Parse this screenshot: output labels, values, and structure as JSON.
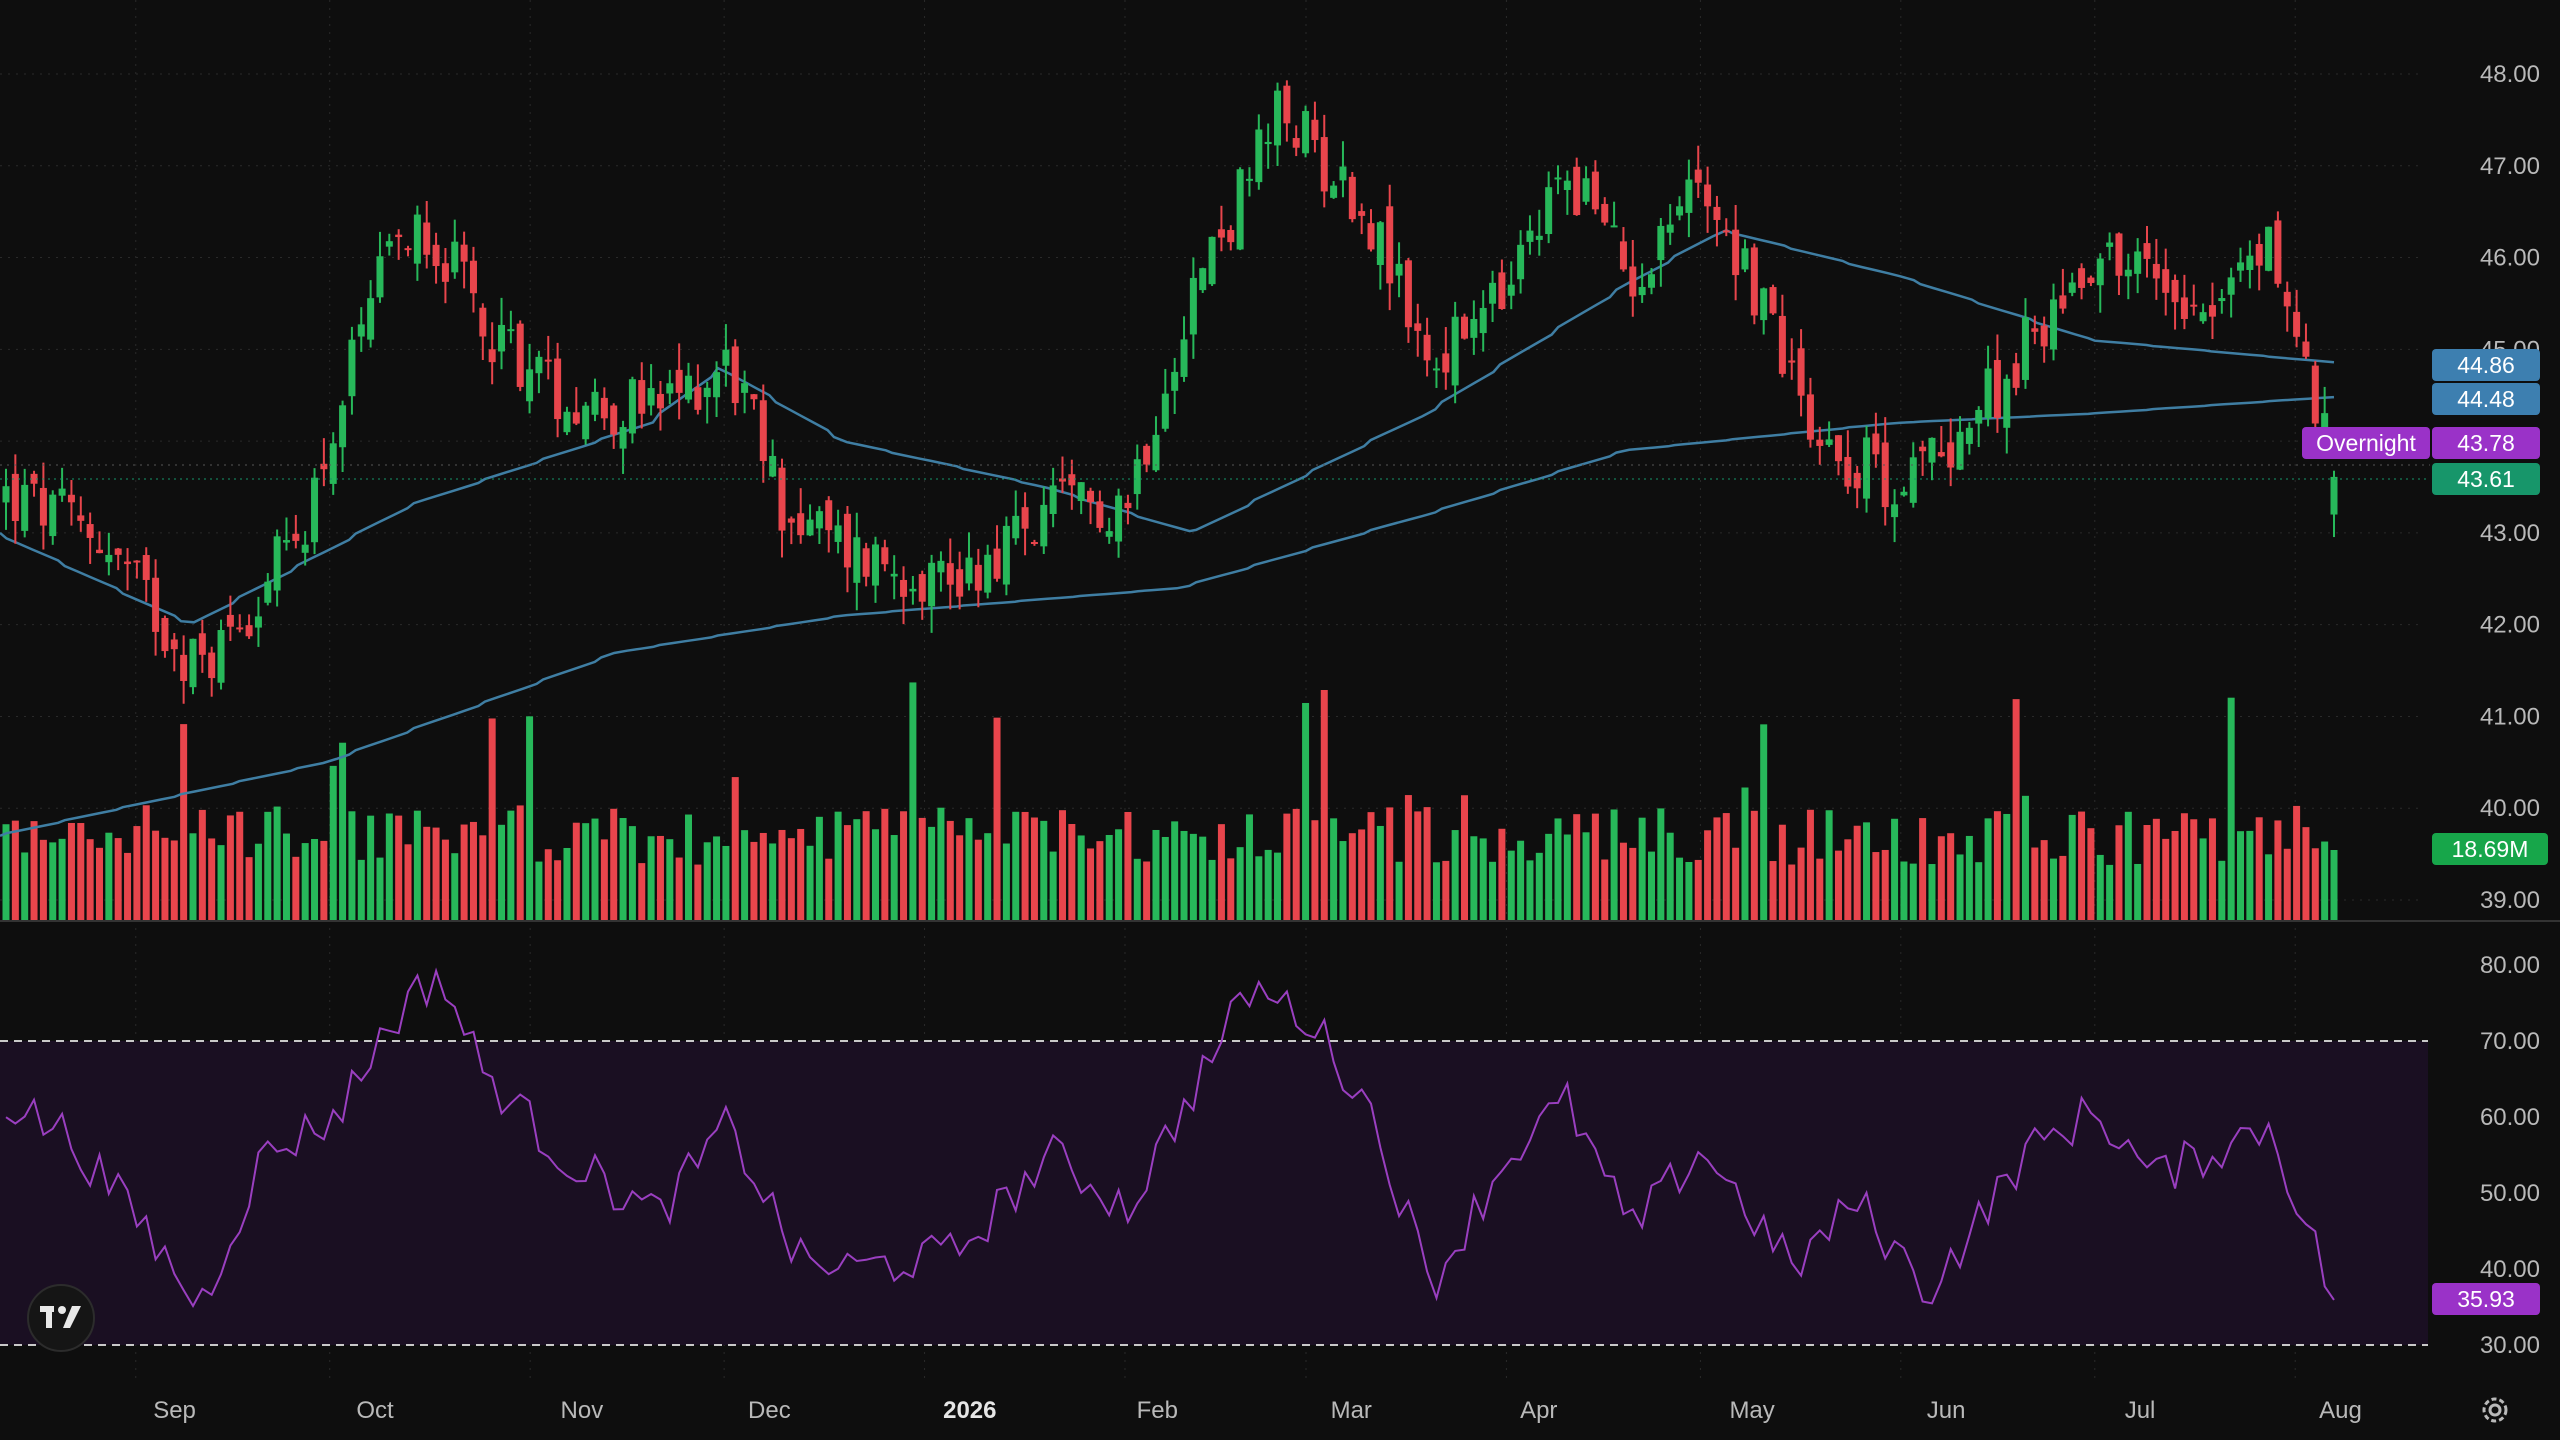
{
  "colors": {
    "background": "#0e0e0e",
    "up": "#27b85a",
    "down": "#e8454c",
    "ma_fast": "#3f7ea3",
    "ma_slow": "#3f7ea3",
    "rsi": "#9a3fc0",
    "rsi_band": "#1a0f22",
    "axis_text": "#b9b9b9",
    "grid": "#2a2a2a"
  },
  "icons": {
    "logo": "tradingview-logo-icon",
    "settings": "gear-icon"
  },
  "axis": {
    "price_ticks": [
      "48.00",
      "47.00",
      "46.00",
      "45.00",
      "44.00",
      "43.00",
      "42.00",
      "41.00",
      "40.00",
      "39.00"
    ],
    "rsi_ticks": [
      "80.00",
      "70.00",
      "60.00",
      "50.00",
      "40.00",
      "30.00"
    ],
    "month_labels": [
      "Sep",
      "Oct",
      "Nov",
      "Dec",
      "2026",
      "Feb",
      "Mar",
      "Apr",
      "May",
      "Jun",
      "Jul",
      "Aug"
    ]
  },
  "chart_data": [
    {
      "type": "candlestick",
      "title": "",
      "ylim": [
        39.0,
        48.0
      ],
      "x_range": [
        "2025-08-11",
        "2026-08-07"
      ],
      "candle_count": 250,
      "close_path": [
        {
          "x": "2025-08-11",
          "y": 43.4
        },
        {
          "x": "2025-08-25",
          "y": 43.0
        },
        {
          "x": "2025-09-10",
          "y": 41.5
        },
        {
          "x": "2025-09-25",
          "y": 42.9
        },
        {
          "x": "2025-10-08",
          "y": 45.7
        },
        {
          "x": "2025-10-14",
          "y": 46.5
        },
        {
          "x": "2025-10-24",
          "y": 45.3
        },
        {
          "x": "2025-11-05",
          "y": 44.5
        },
        {
          "x": "2025-11-20",
          "y": 44.3
        },
        {
          "x": "2025-12-01",
          "y": 44.9
        },
        {
          "x": "2025-12-10",
          "y": 43.2
        },
        {
          "x": "2025-12-20",
          "y": 42.8
        },
        {
          "x": "2026-01-05",
          "y": 42.5
        },
        {
          "x": "2026-01-20",
          "y": 43.2
        },
        {
          "x": "2026-02-01",
          "y": 43.4
        },
        {
          "x": "2026-02-10",
          "y": 45.5
        },
        {
          "x": "2026-02-25",
          "y": 47.6
        },
        {
          "x": "2026-03-10",
          "y": 46.5
        },
        {
          "x": "2026-03-20",
          "y": 44.8
        },
        {
          "x": "2026-04-01",
          "y": 45.6
        },
        {
          "x": "2026-04-10",
          "y": 47.0
        },
        {
          "x": "2026-04-20",
          "y": 45.8
        },
        {
          "x": "2026-05-01",
          "y": 46.9
        },
        {
          "x": "2026-05-20",
          "y": 44.0
        },
        {
          "x": "2026-06-01",
          "y": 43.5
        },
        {
          "x": "2026-06-15",
          "y": 44.5
        },
        {
          "x": "2026-07-01",
          "y": 46.1
        },
        {
          "x": "2026-07-20",
          "y": 45.5
        },
        {
          "x": "2026-07-28",
          "y": 46.2
        },
        {
          "x": "2026-08-07",
          "y": 43.61
        }
      ],
      "moving_averages": [
        {
          "values_at": [
            {
              "x": "2025-08-11",
              "y": 43.0
            },
            {
              "x": "2025-09-10",
              "y": 42.0
            },
            {
              "x": "2025-10-14",
              "y": 43.3
            },
            {
              "x": "2025-11-20",
              "y": 44.2
            },
            {
              "x": "2025-12-01",
              "y": 44.8
            },
            {
              "x": "2025-12-20",
              "y": 44.0
            },
            {
              "x": "2026-01-20",
              "y": 43.5
            },
            {
              "x": "2026-02-12",
              "y": 43.0
            },
            {
              "x": "2026-03-20",
              "y": 44.3
            },
            {
              "x": "2026-04-20",
              "y": 45.7
            },
            {
              "x": "2026-05-05",
              "y": 46.3
            },
            {
              "x": "2026-06-01",
              "y": 45.8
            },
            {
              "x": "2026-07-01",
              "y": 45.1
            },
            {
              "x": "2026-08-07",
              "y": 44.86
            }
          ]
        },
        {
          "values_at": [
            {
              "x": "2025-08-11",
              "y": 39.7
            },
            {
              "x": "2025-10-01",
              "y": 40.5
            },
            {
              "x": "2025-11-15",
              "y": 41.7
            },
            {
              "x": "2025-12-20",
              "y": 42.1
            },
            {
              "x": "2026-02-10",
              "y": 42.4
            },
            {
              "x": "2026-03-20",
              "y": 43.2
            },
            {
              "x": "2026-04-20",
              "y": 43.9
            },
            {
              "x": "2026-06-01",
              "y": 44.2
            },
            {
              "x": "2026-07-01",
              "y": 44.3
            },
            {
              "x": "2026-08-07",
              "y": 44.48
            }
          ]
        }
      ],
      "last_values": {
        "ma_fast": "44.86",
        "ma_slow": "44.48",
        "overnight_label": "Overnight",
        "overnight": "43.78",
        "close": "43.61"
      }
    },
    {
      "type": "bar",
      "title": "",
      "bar_count": 250,
      "last_volume_label": "18.69M"
    },
    {
      "type": "line",
      "title": "",
      "ylim": [
        30,
        82
      ],
      "band": [
        30,
        70
      ],
      "points": [
        {
          "x": "2025-08-11",
          "y": 62
        },
        {
          "x": "2025-08-20",
          "y": 58
        },
        {
          "x": "2025-09-01",
          "y": 46
        },
        {
          "x": "2025-09-10",
          "y": 35
        },
        {
          "x": "2025-09-20",
          "y": 55
        },
        {
          "x": "2025-10-01",
          "y": 60
        },
        {
          "x": "2025-10-10",
          "y": 73
        },
        {
          "x": "2025-10-17",
          "y": 79
        },
        {
          "x": "2025-10-24",
          "y": 66
        },
        {
          "x": "2025-11-05",
          "y": 55
        },
        {
          "x": "2025-11-20",
          "y": 47
        },
        {
          "x": "2025-12-01",
          "y": 59
        },
        {
          "x": "2025-12-12",
          "y": 41
        },
        {
          "x": "2025-12-20",
          "y": 40
        },
        {
          "x": "2026-01-05",
          "y": 42
        },
        {
          "x": "2026-01-20",
          "y": 55
        },
        {
          "x": "2026-02-01",
          "y": 48
        },
        {
          "x": "2026-02-12",
          "y": 65
        },
        {
          "x": "2026-02-20",
          "y": 77
        },
        {
          "x": "2026-03-01",
          "y": 73
        },
        {
          "x": "2026-03-10",
          "y": 62
        },
        {
          "x": "2026-03-20",
          "y": 38
        },
        {
          "x": "2026-04-01",
          "y": 55
        },
        {
          "x": "2026-04-10",
          "y": 62
        },
        {
          "x": "2026-04-20",
          "y": 45
        },
        {
          "x": "2026-05-01",
          "y": 56
        },
        {
          "x": "2026-05-15",
          "y": 40
        },
        {
          "x": "2026-05-25",
          "y": 49
        },
        {
          "x": "2026-06-05",
          "y": 37
        },
        {
          "x": "2026-06-20",
          "y": 55
        },
        {
          "x": "2026-07-01",
          "y": 61
        },
        {
          "x": "2026-07-10",
          "y": 52
        },
        {
          "x": "2026-07-28",
          "y": 59
        },
        {
          "x": "2026-08-07",
          "y": 35.93
        }
      ],
      "last_value_label": "35.93"
    }
  ]
}
